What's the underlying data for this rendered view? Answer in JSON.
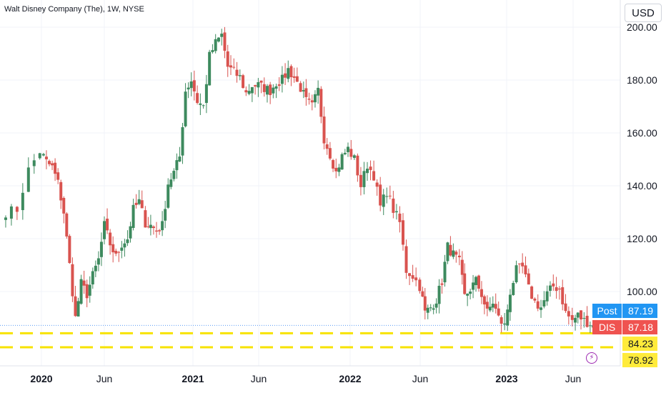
{
  "header": {
    "title": "Walt Disney Company (The), 1W, NYSE",
    "currency": "USD"
  },
  "colors": {
    "up": "#26a69a",
    "up_body": "#3d8a5e",
    "down": "#d9534f",
    "grid": "#f0f3fa",
    "support_line": "#f7e300",
    "post_tag": "#2196f3",
    "dis_tag": "#ef5350",
    "level_tag": "#ffeb3b",
    "lightning": "#9c27b0"
  },
  "tags": {
    "post_label": "Post",
    "post_value": "87.19",
    "dis_label": "DIS",
    "dis_value": "87.18",
    "level1_value": "84.23",
    "level2_value": "78.92"
  },
  "chart_data": {
    "type": "candlestick",
    "title": "Walt Disney Company (The), 1W, NYSE",
    "symbol": "DIS",
    "interval": "1W",
    "exchange": "NYSE",
    "y_axis": {
      "side": "right",
      "range": [
        74,
        204
      ],
      "ticks": [
        "100.00",
        "120.00",
        "140.00",
        "160.00",
        "180.00",
        "200.00"
      ]
    },
    "x_axis": {
      "labels": [
        "2020",
        "Jun",
        "2021",
        "Jun",
        "2022",
        "Jun",
        "2023",
        "Jun"
      ],
      "bold": [
        "2020",
        "2021",
        "2022",
        "2023"
      ]
    },
    "horizontal_levels": [
      84.23,
      78.92
    ],
    "last_price": 87.18,
    "post_price": 87.19,
    "anchors": [
      [
        "2019-11-18",
        130
      ],
      [
        "2019-12-02",
        131
      ],
      [
        "2019-12-16",
        146
      ],
      [
        "2019-12-30",
        153
      ],
      [
        "2020-01-13",
        149
      ],
      [
        "2020-01-27",
        147
      ],
      [
        "2020-02-10",
        141
      ],
      [
        "2020-02-24",
        130
      ],
      [
        "2020-03-09",
        110
      ],
      [
        "2020-03-23",
        90
      ],
      [
        "2020-04-06",
        103
      ],
      [
        "2020-04-20",
        99
      ],
      [
        "2020-05-04",
        106
      ],
      [
        "2020-05-18",
        112
      ],
      [
        "2020-06-01",
        125
      ],
      [
        "2020-06-15",
        118
      ],
      [
        "2020-06-29",
        113
      ],
      [
        "2020-07-13",
        118
      ],
      [
        "2020-07-27",
        120
      ],
      [
        "2020-08-10",
        131
      ],
      [
        "2020-08-24",
        134
      ],
      [
        "2020-09-08",
        126
      ],
      [
        "2020-09-21",
        125
      ],
      [
        "2020-10-05",
        123
      ],
      [
        "2020-10-19",
        125
      ],
      [
        "2020-11-02",
        141
      ],
      [
        "2020-11-16",
        145
      ],
      [
        "2020-11-30",
        151
      ],
      [
        "2020-12-14",
        176
      ],
      [
        "2020-12-28",
        180
      ],
      [
        "2021-01-11",
        172
      ],
      [
        "2021-01-25",
        170
      ],
      [
        "2021-02-08",
        189
      ],
      [
        "2021-02-22",
        194
      ],
      [
        "2021-03-08",
        197
      ],
      [
        "2021-03-22",
        185
      ],
      [
        "2021-04-05",
        183
      ],
      [
        "2021-04-19",
        181
      ],
      [
        "2021-05-03",
        175
      ],
      [
        "2021-05-17",
        178
      ],
      [
        "2021-05-31",
        178
      ],
      [
        "2021-06-14",
        177
      ],
      [
        "2021-06-28",
        176
      ],
      [
        "2021-07-12",
        179
      ],
      [
        "2021-07-26",
        180
      ],
      [
        "2021-08-09",
        184
      ],
      [
        "2021-08-23",
        181
      ],
      [
        "2021-09-07",
        177
      ],
      [
        "2021-09-20",
        172
      ],
      [
        "2021-10-04",
        170
      ],
      [
        "2021-10-18",
        176
      ],
      [
        "2021-11-01",
        158
      ],
      [
        "2021-11-15",
        152
      ],
      [
        "2021-11-29",
        145
      ],
      [
        "2021-12-13",
        151
      ],
      [
        "2021-12-27",
        154
      ],
      [
        "2022-01-10",
        150
      ],
      [
        "2022-01-24",
        140
      ],
      [
        "2022-02-07",
        148
      ],
      [
        "2022-02-21",
        144
      ],
      [
        "2022-03-07",
        132
      ],
      [
        "2022-03-21",
        138
      ],
      [
        "2022-04-04",
        131
      ],
      [
        "2022-04-18",
        126
      ],
      [
        "2022-05-02",
        108
      ],
      [
        "2022-05-16",
        106
      ],
      [
        "2022-05-31",
        102
      ],
      [
        "2022-06-13",
        92
      ],
      [
        "2022-06-27",
        94
      ],
      [
        "2022-07-11",
        97
      ],
      [
        "2022-07-25",
        104
      ],
      [
        "2022-08-08",
        117
      ],
      [
        "2022-08-22",
        114
      ],
      [
        "2022-09-06",
        111
      ],
      [
        "2022-09-19",
        98
      ],
      [
        "2022-10-03",
        101
      ],
      [
        "2022-10-17",
        104
      ],
      [
        "2022-10-31",
        99
      ],
      [
        "2022-11-14",
        92
      ],
      [
        "2022-11-28",
        96
      ],
      [
        "2022-12-12",
        90
      ],
      [
        "2022-12-27",
        87
      ],
      [
        "2023-01-09",
        100
      ],
      [
        "2023-01-23",
        108
      ],
      [
        "2023-02-06",
        109
      ],
      [
        "2023-02-20",
        101
      ],
      [
        "2023-03-06",
        96
      ],
      [
        "2023-03-20",
        94
      ],
      [
        "2023-04-03",
        99
      ],
      [
        "2023-04-17",
        102
      ],
      [
        "2023-05-01",
        101
      ],
      [
        "2023-05-15",
        92
      ],
      [
        "2023-05-30",
        89
      ],
      [
        "2023-06-12",
        91
      ],
      [
        "2023-06-26",
        89
      ],
      [
        "2023-07-10",
        88
      ],
      [
        "2023-07-17",
        87.18
      ]
    ]
  }
}
